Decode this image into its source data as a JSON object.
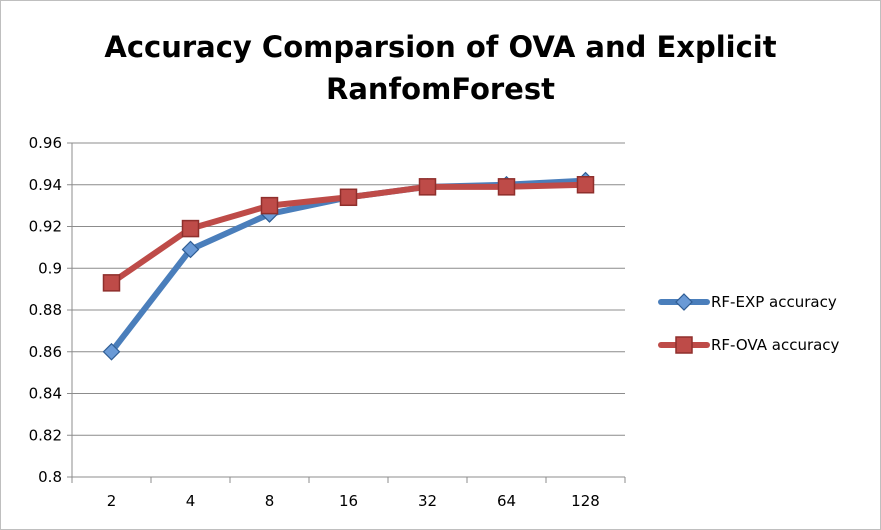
{
  "chart_data": {
    "type": "line",
    "title": "Accuracy Comparsion of OVA and Explicit RanfomForest",
    "title_lines": [
      "Accuracy Comparsion of OVA and Explicit",
      "RanfomForest"
    ],
    "categories": [
      "2",
      "4",
      "8",
      "16",
      "32",
      "64",
      "128"
    ],
    "series": [
      {
        "name": "RF-EXP accuracy",
        "values": [
          0.86,
          0.909,
          0.926,
          0.934,
          0.939,
          0.94,
          0.942
        ],
        "color": "#4a7ebb",
        "marker": "diamond"
      },
      {
        "name": "RF-OVA accuracy",
        "values": [
          0.893,
          0.919,
          0.93,
          0.934,
          0.939,
          0.939,
          0.94
        ],
        "color": "#be4b48",
        "marker": "square"
      }
    ],
    "ylim": [
      0.8,
      0.96
    ],
    "yticks": [
      "0.8",
      "0.82",
      "0.84",
      "0.86",
      "0.88",
      "0.9",
      "0.92",
      "0.94",
      "0.96"
    ],
    "xlabel": "",
    "ylabel": "",
    "grid": "horizontal",
    "legend_position": "right"
  }
}
